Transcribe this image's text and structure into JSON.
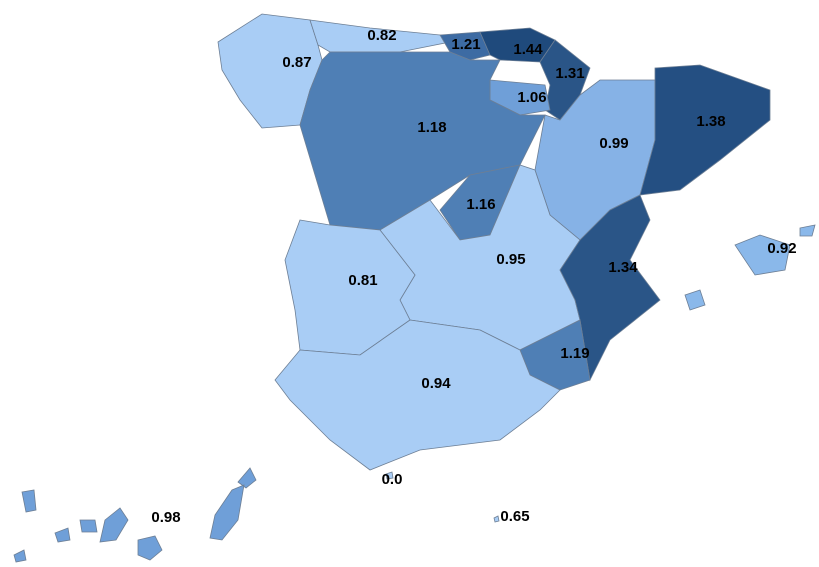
{
  "regions": [
    {
      "value": 0.87,
      "color": "#a9cdf5"
    },
    {
      "value": 0.82,
      "color": "#a9cdf5"
    },
    {
      "value": 1.21,
      "color": "#3d6ba3"
    },
    {
      "value": 1.44,
      "color": "#1f4a7c"
    },
    {
      "value": 1.31,
      "color": "#2a5587"
    },
    {
      "value": 1.06,
      "color": "#6f9fd8"
    },
    {
      "value": 1.18,
      "color": "#4f7fb5"
    },
    {
      "value": 0.99,
      "color": "#86b2e6"
    },
    {
      "value": 1.38,
      "color": "#244f82"
    },
    {
      "value": 1.16,
      "color": "#4f7fb5"
    },
    {
      "value": 0.95,
      "color": "#a9cdf5"
    },
    {
      "value": 0.81,
      "color": "#a9cdf5"
    },
    {
      "value": 1.34,
      "color": "#2a5587"
    },
    {
      "value": 1.19,
      "color": "#4f7fb5"
    },
    {
      "value": 0.94,
      "color": "#a9cdf5"
    },
    {
      "value": 0.92,
      "color": "#8ab8ea"
    },
    {
      "value": 0.98,
      "color": "#6f9fd8"
    },
    {
      "value": 0,
      "label": "0.0",
      "color": "#a9cdf5"
    },
    {
      "value": 0.65,
      "color": "#a9cdf5"
    }
  ]
}
